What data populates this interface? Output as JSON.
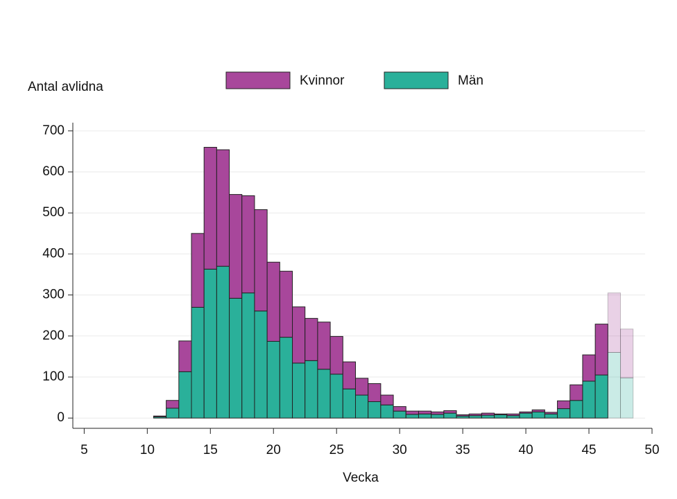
{
  "chart_data": {
    "type": "stacked-bar",
    "y_label": "Antal avlidna",
    "x_label": "Vecka",
    "x": [
      11,
      12,
      13,
      14,
      15,
      16,
      17,
      18,
      19,
      20,
      21,
      22,
      23,
      24,
      25,
      26,
      27,
      28,
      29,
      30,
      31,
      32,
      33,
      34,
      35,
      36,
      37,
      38,
      39,
      40,
      41,
      42,
      43,
      44,
      45,
      46,
      47,
      48
    ],
    "series": [
      {
        "name": "Kvinnor",
        "color": "#a8479b",
        "values": [
          2,
          19,
          75,
          180,
          297,
          284,
          253,
          237,
          247,
          193,
          161,
          137,
          103,
          115,
          92,
          66,
          41,
          44,
          24,
          11,
          8,
          7,
          6,
          6,
          3,
          4,
          5,
          2,
          4,
          3,
          5,
          4,
          19,
          38,
          64,
          124,
          145,
          119
        ]
      },
      {
        "name": "Män",
        "color": "#2ab09a",
        "values": [
          3,
          24,
          113,
          270,
          363,
          370,
          292,
          305,
          261,
          187,
          197,
          134,
          140,
          119,
          107,
          71,
          56,
          40,
          32,
          17,
          9,
          10,
          9,
          12,
          5,
          6,
          7,
          8,
          6,
          12,
          15,
          10,
          23,
          43,
          90,
          105,
          160,
          98
        ]
      }
    ],
    "bar_opacity": [
      1,
      1,
      1,
      1,
      1,
      1,
      1,
      1,
      1,
      1,
      1,
      1,
      1,
      1,
      1,
      1,
      1,
      1,
      1,
      1,
      1,
      1,
      1,
      1,
      1,
      1,
      1,
      1,
      1,
      1,
      1,
      1,
      1,
      1,
      1,
      1,
      0.25,
      0.25
    ],
    "xlim": [
      4.1,
      50
    ],
    "xticks": [
      5,
      10,
      15,
      20,
      25,
      30,
      35,
      40,
      45,
      50
    ],
    "ylim": [
      -25,
      720
    ],
    "yticks": [
      0,
      100,
      200,
      300,
      400,
      500,
      600,
      700
    ],
    "grid": true,
    "legend": "top"
  }
}
